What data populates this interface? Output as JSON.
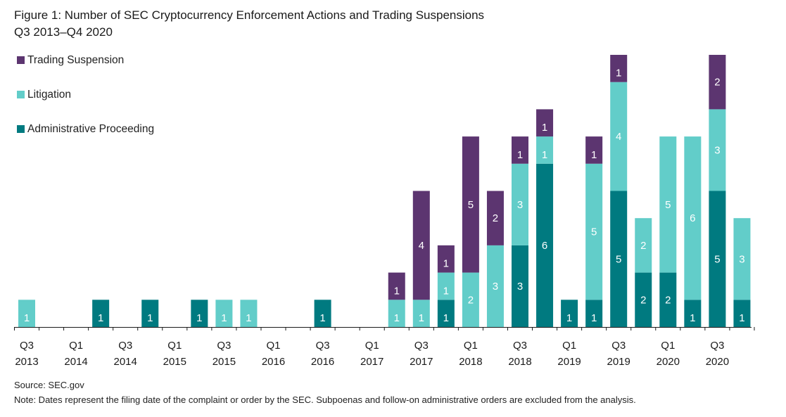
{
  "title_line1": "Figure 1: Number of SEC Cryptocurrency Enforcement Actions and Trading Suspensions",
  "title_line2": "Q3 2013–Q4 2020",
  "source": "Source: SEC.gov",
  "note": "Note: Dates represent the filing date of the complaint or order by the SEC. Subpoenas and follow-on administrative orders are excluded from the analysis.",
  "chart_data": {
    "type": "bar",
    "stacked": true,
    "title": "Number of SEC Cryptocurrency Enforcement Actions and Trading Suspensions",
    "xlabel": "",
    "ylabel": "",
    "ylim": [
      0,
      10
    ],
    "grid": false,
    "legend_position": "top-left",
    "categories": [
      "Q3 2013",
      "Q4 2013",
      "Q1 2014",
      "Q2 2014",
      "Q3 2014",
      "Q4 2014",
      "Q1 2015",
      "Q2 2015",
      "Q3 2015",
      "Q4 2015",
      "Q1 2016",
      "Q2 2016",
      "Q3 2016",
      "Q4 2016",
      "Q1 2017",
      "Q2 2017",
      "Q3 2017",
      "Q4 2017",
      "Q1 2018",
      "Q2 2018",
      "Q3 2018",
      "Q4 2018",
      "Q1 2019",
      "Q2 2019",
      "Q3 2019",
      "Q4 2019",
      "Q1 2020",
      "Q2 2020",
      "Q3 2020",
      "Q4 2020"
    ],
    "tick_labels": [
      {
        "index": 0,
        "quarter": "Q3",
        "year": "2013"
      },
      {
        "index": 2,
        "quarter": "Q1",
        "year": "2014"
      },
      {
        "index": 4,
        "quarter": "Q3",
        "year": "2014"
      },
      {
        "index": 6,
        "quarter": "Q1",
        "year": "2015"
      },
      {
        "index": 8,
        "quarter": "Q3",
        "year": "2015"
      },
      {
        "index": 10,
        "quarter": "Q1",
        "year": "2016"
      },
      {
        "index": 12,
        "quarter": "Q3",
        "year": "2016"
      },
      {
        "index": 14,
        "quarter": "Q1",
        "year": "2017"
      },
      {
        "index": 16,
        "quarter": "Q3",
        "year": "2017"
      },
      {
        "index": 18,
        "quarter": "Q1",
        "year": "2018"
      },
      {
        "index": 20,
        "quarter": "Q3",
        "year": "2018"
      },
      {
        "index": 22,
        "quarter": "Q1",
        "year": "2019"
      },
      {
        "index": 24,
        "quarter": "Q3",
        "year": "2019"
      },
      {
        "index": 26,
        "quarter": "Q1",
        "year": "2020"
      },
      {
        "index": 28,
        "quarter": "Q3",
        "year": "2020"
      }
    ],
    "series": [
      {
        "name": "Administrative Proceeding",
        "color": "#007a80",
        "values": [
          0,
          0,
          0,
          1,
          0,
          1,
          0,
          1,
          0,
          0,
          0,
          0,
          1,
          0,
          0,
          0,
          0,
          1,
          0,
          0,
          3,
          6,
          1,
          1,
          5,
          2,
          2,
          1,
          5,
          1
        ]
      },
      {
        "name": "Litigation",
        "color": "#62cdc9",
        "values": [
          1,
          0,
          0,
          0,
          0,
          0,
          0,
          0,
          1,
          1,
          0,
          0,
          0,
          0,
          0,
          1,
          1,
          1,
          2,
          3,
          3,
          1,
          0,
          5,
          4,
          2,
          5,
          6,
          3,
          3
        ]
      },
      {
        "name": "Trading Suspension",
        "color": "#5c3570",
        "values": [
          0,
          0,
          0,
          0,
          0,
          0,
          0,
          0,
          0,
          0,
          0,
          0,
          0,
          0,
          0,
          1,
          4,
          1,
          5,
          2,
          1,
          1,
          0,
          1,
          1,
          0,
          0,
          0,
          2,
          0
        ]
      }
    ],
    "legend": [
      "Trading Suspension",
      "Litigation",
      "Administrative Proceeding"
    ]
  }
}
